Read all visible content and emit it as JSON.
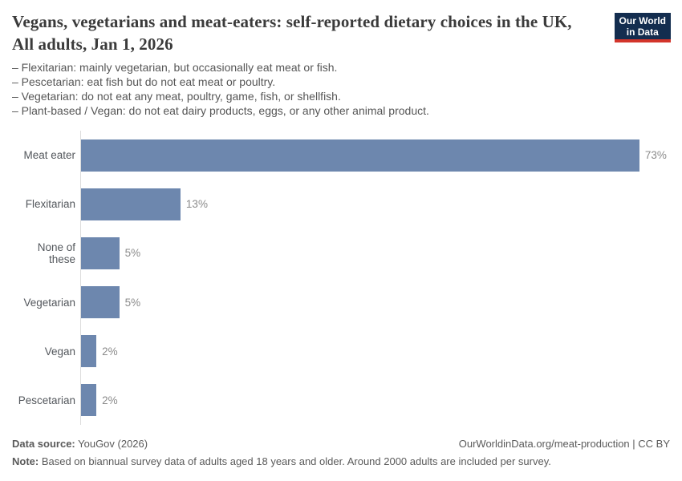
{
  "header": {
    "title": "Vegans, vegetarians and meat-eaters: self-reported dietary choices in the UK, All adults, Jan 1, 2026",
    "subtitle_lines": [
      "– Flexitarian: mainly vegetarian, but occasionally eat meat or fish.",
      "– Pescetarian: eat fish but do not eat meat or poultry.",
      "– Vegetarian: do not eat any meat, poultry, game, fish, or shellfish.",
      "– Plant-based / Vegan: do not eat dairy products, eggs, or any other animal product."
    ],
    "logo": {
      "line1": "Our World",
      "line2": "in Data"
    }
  },
  "chart_data": {
    "type": "bar",
    "orientation": "horizontal",
    "title": "Vegans, vegetarians and meat-eaters: self-reported dietary choices in the UK, All adults, Jan 1, 2026",
    "categories": [
      "Meat eater",
      "Flexitarian",
      "None of these",
      "Vegetarian",
      "Vegan",
      "Pescetarian"
    ],
    "values": [
      73,
      13,
      5,
      5,
      2,
      2
    ],
    "value_labels": [
      "73%",
      "13%",
      "5%",
      "5%",
      "2%",
      "2%"
    ],
    "unit": "%",
    "xlim": [
      0,
      77
    ],
    "grid": false,
    "legend": false,
    "bar_color": "#6d87ae",
    "axis_color": "#dcdcdc"
  },
  "footer": {
    "source_label": "Data source:",
    "source_text": " YouGov (2026)",
    "link_text": "OurWorldinData.org/meat-production | CC BY",
    "note_label": "Note:",
    "note_text": " Based on biannual survey data of adults aged 18 years and older. Around 2000 adults are included per survey."
  },
  "colors": {
    "bar": "#6d87ae",
    "logo_background": "#132d4f",
    "logo_stripe": "#d3352b",
    "title_text": "#3b3b3b",
    "body_text": "#565656",
    "value_text": "#8b8b8b"
  }
}
